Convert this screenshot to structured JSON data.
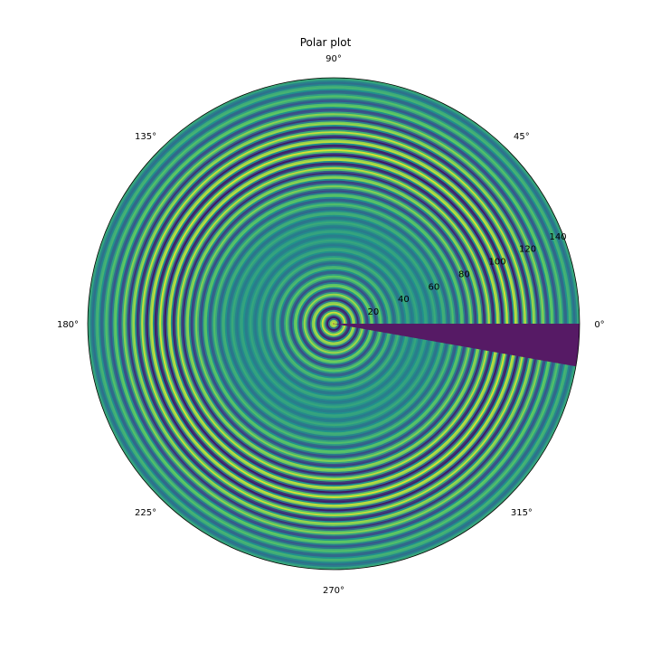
{
  "chart_data": {
    "type": "heatmap",
    "projection": "polar",
    "title": "Polar plot",
    "angular_ticks": [
      "0°",
      "45°",
      "90°",
      "135°",
      "180°",
      "225°",
      "270°",
      "315°"
    ],
    "angular_tick_degrees": [
      0,
      45,
      90,
      135,
      180,
      225,
      270,
      315
    ],
    "radial_ticks": [
      20,
      40,
      60,
      80,
      100,
      120,
      140
    ],
    "radial_tick_labels": [
      "20",
      "40",
      "60",
      "80",
      "100",
      "120",
      "140"
    ],
    "rlim": [
      0,
      150
    ],
    "radial_tick_label_angle_deg": 22.5,
    "theta_data_range_deg": [
      0,
      350
    ],
    "colormap": "viridis",
    "colormap_stops": [
      "#440154",
      "#3b528b",
      "#21918c",
      "#5ec962",
      "#fde725"
    ],
    "color_range": [
      -1,
      1
    ],
    "approx_ring_spacing": 5.5,
    "grid": false,
    "legend": "none"
  }
}
